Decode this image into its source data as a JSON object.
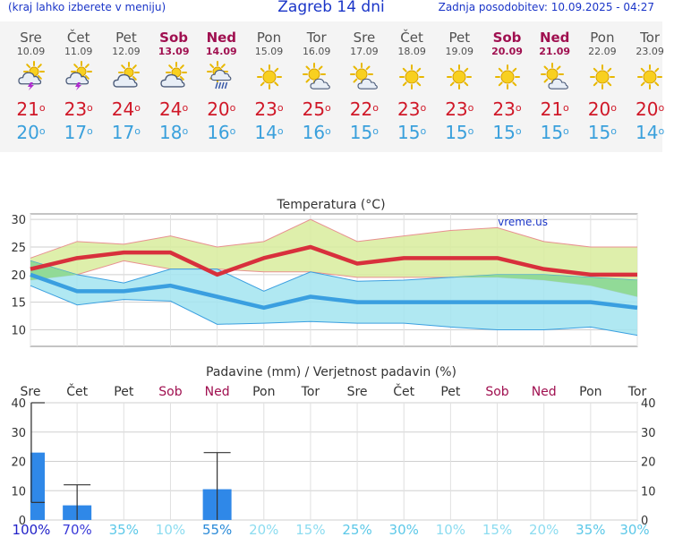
{
  "header": {
    "menu_hint": "(kraj lahko izberete v meniju)",
    "city_title": "Zagreb 14 dni",
    "last_update": "Zadnja posodobitev: 10.09.2025 - 04:27"
  },
  "days": [
    {
      "name": "Sre",
      "date": "10.09",
      "weekend": false,
      "icon": "thunder-sun-icon",
      "tmax": "21",
      "tmin": "20"
    },
    {
      "name": "Čet",
      "date": "11.09",
      "weekend": false,
      "icon": "thunder-sun-icon",
      "tmax": "23",
      "tmin": "17"
    },
    {
      "name": "Pet",
      "date": "12.09",
      "weekend": false,
      "icon": "cloud-sun-icon",
      "tmax": "24",
      "tmin": "17"
    },
    {
      "name": "Sob",
      "date": "13.09",
      "weekend": true,
      "icon": "cloud-sun-icon",
      "tmax": "24",
      "tmin": "18"
    },
    {
      "name": "Ned",
      "date": "14.09",
      "weekend": true,
      "icon": "rain-sun-icon",
      "tmax": "20",
      "tmin": "16"
    },
    {
      "name": "Pon",
      "date": "15.09",
      "weekend": false,
      "icon": "sun-icon",
      "tmax": "23",
      "tmin": "14"
    },
    {
      "name": "Tor",
      "date": "16.09",
      "weekend": false,
      "icon": "partly-sunny-icon",
      "tmax": "25",
      "tmin": "16"
    },
    {
      "name": "Sre",
      "date": "17.09",
      "weekend": false,
      "icon": "partly-sunny-icon",
      "tmax": "22",
      "tmin": "15"
    },
    {
      "name": "Čet",
      "date": "18.09",
      "weekend": false,
      "icon": "sun-icon",
      "tmax": "23",
      "tmin": "15"
    },
    {
      "name": "Pet",
      "date": "19.09",
      "weekend": false,
      "icon": "sun-icon",
      "tmax": "23",
      "tmin": "15"
    },
    {
      "name": "Sob",
      "date": "20.09",
      "weekend": true,
      "icon": "sun-icon",
      "tmax": "23",
      "tmin": "15"
    },
    {
      "name": "Ned",
      "date": "21.09",
      "weekend": true,
      "icon": "partly-sunny-icon",
      "tmax": "21",
      "tmin": "15"
    },
    {
      "name": "Pon",
      "date": "22.09",
      "weekend": false,
      "icon": "sun-icon",
      "tmax": "20",
      "tmin": "15"
    },
    {
      "name": "Tor",
      "date": "23.09",
      "weekend": false,
      "icon": "sun-icon",
      "tmax": "20",
      "tmin": "14"
    }
  ],
  "degree_symbol": "o",
  "colors": {
    "max_line": "#d8303c",
    "min_line": "#3a9fe0",
    "max_band": "#d8ec9c",
    "min_band": "#a2e4f0",
    "overlap": "#8ed88e",
    "precip_bar": "#2f88e8",
    "weekend": "#a01050"
  },
  "chart_data": [
    {
      "type": "line",
      "title": "Temperatura (°C)",
      "watermark": "vreme.us",
      "ylim": [
        7,
        31
      ],
      "yticks": [
        10,
        15,
        20,
        25,
        30
      ],
      "x": [
        0,
        1,
        2,
        3,
        4,
        5,
        6,
        7,
        8,
        9,
        10,
        11,
        12,
        13
      ],
      "series": [
        {
          "role": "max",
          "values": [
            21,
            23,
            24,
            24,
            20,
            23,
            25,
            22,
            23,
            23,
            23,
            21,
            20,
            20
          ]
        },
        {
          "role": "min",
          "values": [
            20,
            17,
            17,
            18,
            16,
            14,
            16,
            15,
            15,
            15,
            15,
            15,
            15,
            14
          ]
        }
      ],
      "max_band": {
        "x": [
          0,
          1,
          2,
          3,
          4,
          5,
          6,
          7,
          8,
          9,
          10,
          11,
          12,
          13
        ],
        "upper": [
          23,
          26,
          25.5,
          27,
          25,
          26,
          30,
          26,
          27,
          28,
          28.5,
          26,
          25,
          25
        ],
        "lower": [
          19,
          20,
          22.5,
          21,
          21,
          20.5,
          20.5,
          19.5,
          19.5,
          19.5,
          19.5,
          19,
          18,
          16
        ]
      },
      "min_band": {
        "x": [
          0,
          1,
          2,
          3,
          4,
          5,
          6,
          7,
          8,
          9,
          10,
          11,
          12,
          13
        ],
        "upper": [
          22.5,
          20,
          18.5,
          21,
          21,
          17,
          20.5,
          18.8,
          19,
          19.5,
          20,
          20,
          19.5,
          19
        ],
        "lower": [
          18,
          14.5,
          15.5,
          15.2,
          11,
          11.2,
          11.5,
          11.2,
          11.2,
          10.5,
          10,
          10,
          10.5,
          9
        ]
      }
    },
    {
      "type": "bar",
      "title": "Padavine (mm) / Verjetnost padavin (%)",
      "ylim": [
        0,
        40
      ],
      "yticks": [
        0,
        10,
        20,
        30,
        40
      ],
      "categories": [
        "Sre",
        "Čet",
        "Pet",
        "Sob",
        "Ned",
        "Pon",
        "Tor",
        "Sre",
        "Čet",
        "Pet",
        "Sob",
        "Ned",
        "Pon",
        "Tor"
      ],
      "values": [
        23,
        5,
        0,
        0,
        10.5,
        0,
        0,
        0,
        0,
        0,
        0,
        0,
        0,
        0
      ],
      "error_high": [
        40,
        12,
        0,
        0,
        23,
        0,
        0,
        0,
        0,
        0,
        0,
        0,
        0,
        0
      ],
      "error_low": [
        6,
        0,
        0,
        0,
        0,
        0,
        0,
        0,
        0,
        0,
        0,
        0,
        0,
        0
      ],
      "probability": [
        "100%",
        "70%",
        "35%",
        "10%",
        "55%",
        "20%",
        "15%",
        "25%",
        "30%",
        "10%",
        "15%",
        "20%",
        "35%",
        "30%"
      ],
      "probability_values": [
        100,
        70,
        35,
        10,
        55,
        20,
        15,
        25,
        30,
        10,
        15,
        20,
        35,
        30
      ]
    }
  ]
}
